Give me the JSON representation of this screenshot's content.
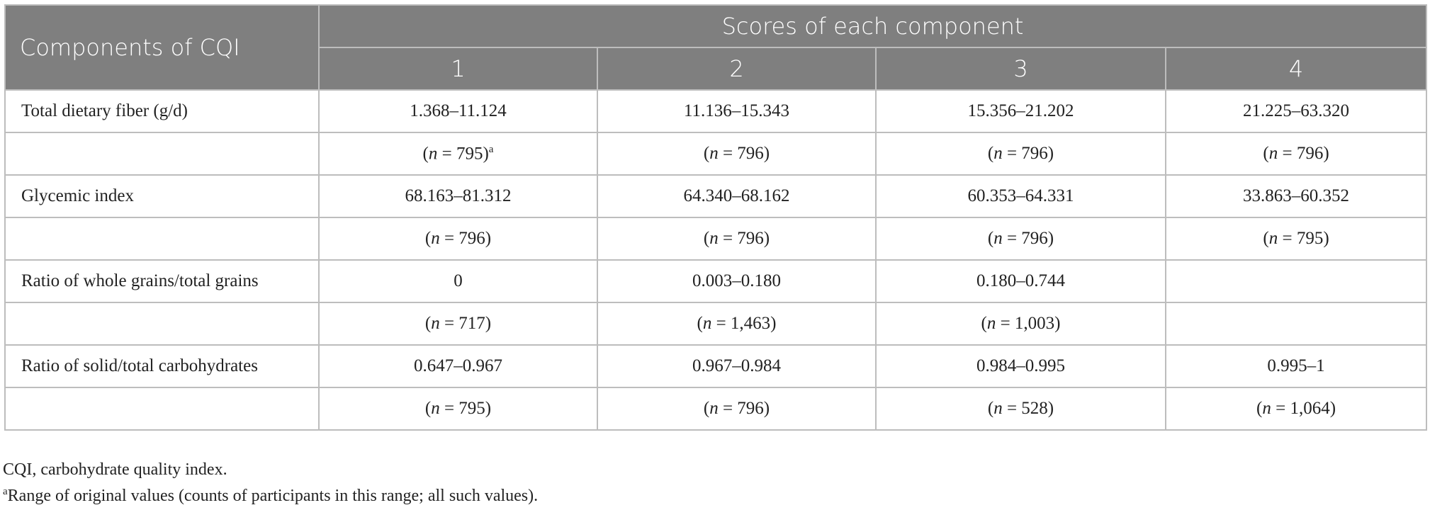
{
  "table": {
    "header": [
      "Components of CQI",
      "Scores of each component"
    ],
    "scores": [
      "1",
      "2",
      "3",
      "4"
    ],
    "rows": [
      {
        "label": "Total dietary fiber (g/d)",
        "ranges": [
          "1.368–11.124",
          "11.136–15.343",
          "15.356–21.202",
          "21.225–63.320"
        ],
        "counts": [
          {
            "parts": [
              "(",
              "n",
              " = 795)"
            ],
            "sup": "a"
          },
          {
            "parts": [
              "(",
              "n",
              " = 796)"
            ]
          },
          {
            "parts": [
              "(",
              "n",
              " = 796)"
            ]
          },
          {
            "parts": [
              "(",
              "n",
              " = 796)"
            ]
          }
        ]
      },
      {
        "label": "Glycemic index",
        "ranges": [
          "68.163–81.312",
          "64.340–68.162",
          "60.353–64.331",
          "33.863–60.352"
        ],
        "counts": [
          {
            "parts": [
              "(",
              "n",
              " = 796)"
            ]
          },
          {
            "parts": [
              "(",
              "n",
              " = 796)"
            ]
          },
          {
            "parts": [
              "(",
              "n",
              " = 796)"
            ]
          },
          {
            "parts": [
              "(",
              "n",
              " = 795)"
            ]
          }
        ]
      },
      {
        "label": "Ratio of whole grains/total grains",
        "ranges": [
          "0",
          "0.003–0.180",
          "0.180–0.744",
          null
        ],
        "counts": [
          {
            "parts": [
              "(",
              "n",
              " = 717)"
            ]
          },
          {
            "parts": [
              "(",
              "n",
              " = 1,463)"
            ]
          },
          {
            "parts": [
              "(",
              "n",
              " = 1,003)"
            ]
          },
          null
        ]
      },
      {
        "label": "Ratio of solid/total carbohydrates",
        "ranges": [
          "0.647–0.967",
          "0.967–0.984",
          "0.984–0.995",
          "0.995–1"
        ],
        "counts": [
          {
            "parts": [
              "(",
              "n",
              " = 795)"
            ]
          },
          {
            "parts": [
              "(",
              "n",
              " = 796)"
            ]
          },
          {
            "parts": [
              "(",
              "n",
              " = 528)"
            ]
          },
          {
            "parts": [
              "(",
              "n",
              " = 1,064)"
            ]
          }
        ]
      }
    ]
  },
  "footnotes": {
    "abbreviation": "CQI, carbohydrate quality index.",
    "note": {
      "mark": "a",
      "text": "Range of original values (counts of participants in this range; all such values)."
    }
  }
}
